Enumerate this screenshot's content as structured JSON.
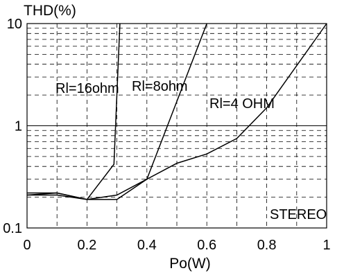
{
  "chart_data": {
    "type": "line",
    "title": "",
    "xlabel": "Po(W)",
    "ylabel": "THD(%)",
    "xlim": [
      0,
      1
    ],
    "ylim": [
      0.1,
      10
    ],
    "yscale": "log",
    "grid": true,
    "x_ticks": [
      "0",
      "0.2",
      "0.4",
      "0.6",
      "0.8",
      "1"
    ],
    "y_ticks": [
      "0.1",
      "1",
      "10"
    ],
    "series": [
      {
        "name": "Rl=16ohm",
        "points": [
          [
            0,
            0.22
          ],
          [
            0.1,
            0.22
          ],
          [
            0.2,
            0.19
          ],
          [
            0.29,
            0.42
          ],
          [
            0.31,
            10
          ]
        ]
      },
      {
        "name": "Rl=8ohm",
        "points": [
          [
            0,
            0.21
          ],
          [
            0.1,
            0.22
          ],
          [
            0.2,
            0.19
          ],
          [
            0.3,
            0.21
          ],
          [
            0.4,
            0.3
          ],
          [
            0.6,
            10
          ]
        ]
      },
      {
        "name": "Rl=4 OHM",
        "points": [
          [
            0,
            0.21
          ],
          [
            0.1,
            0.21
          ],
          [
            0.2,
            0.19
          ],
          [
            0.3,
            0.19
          ],
          [
            0.4,
            0.3
          ],
          [
            0.5,
            0.43
          ],
          [
            0.6,
            0.53
          ],
          [
            0.7,
            0.75
          ],
          [
            0.8,
            1.5
          ],
          [
            1.0,
            10
          ]
        ]
      }
    ],
    "annotations": [
      "STEREO"
    ]
  }
}
